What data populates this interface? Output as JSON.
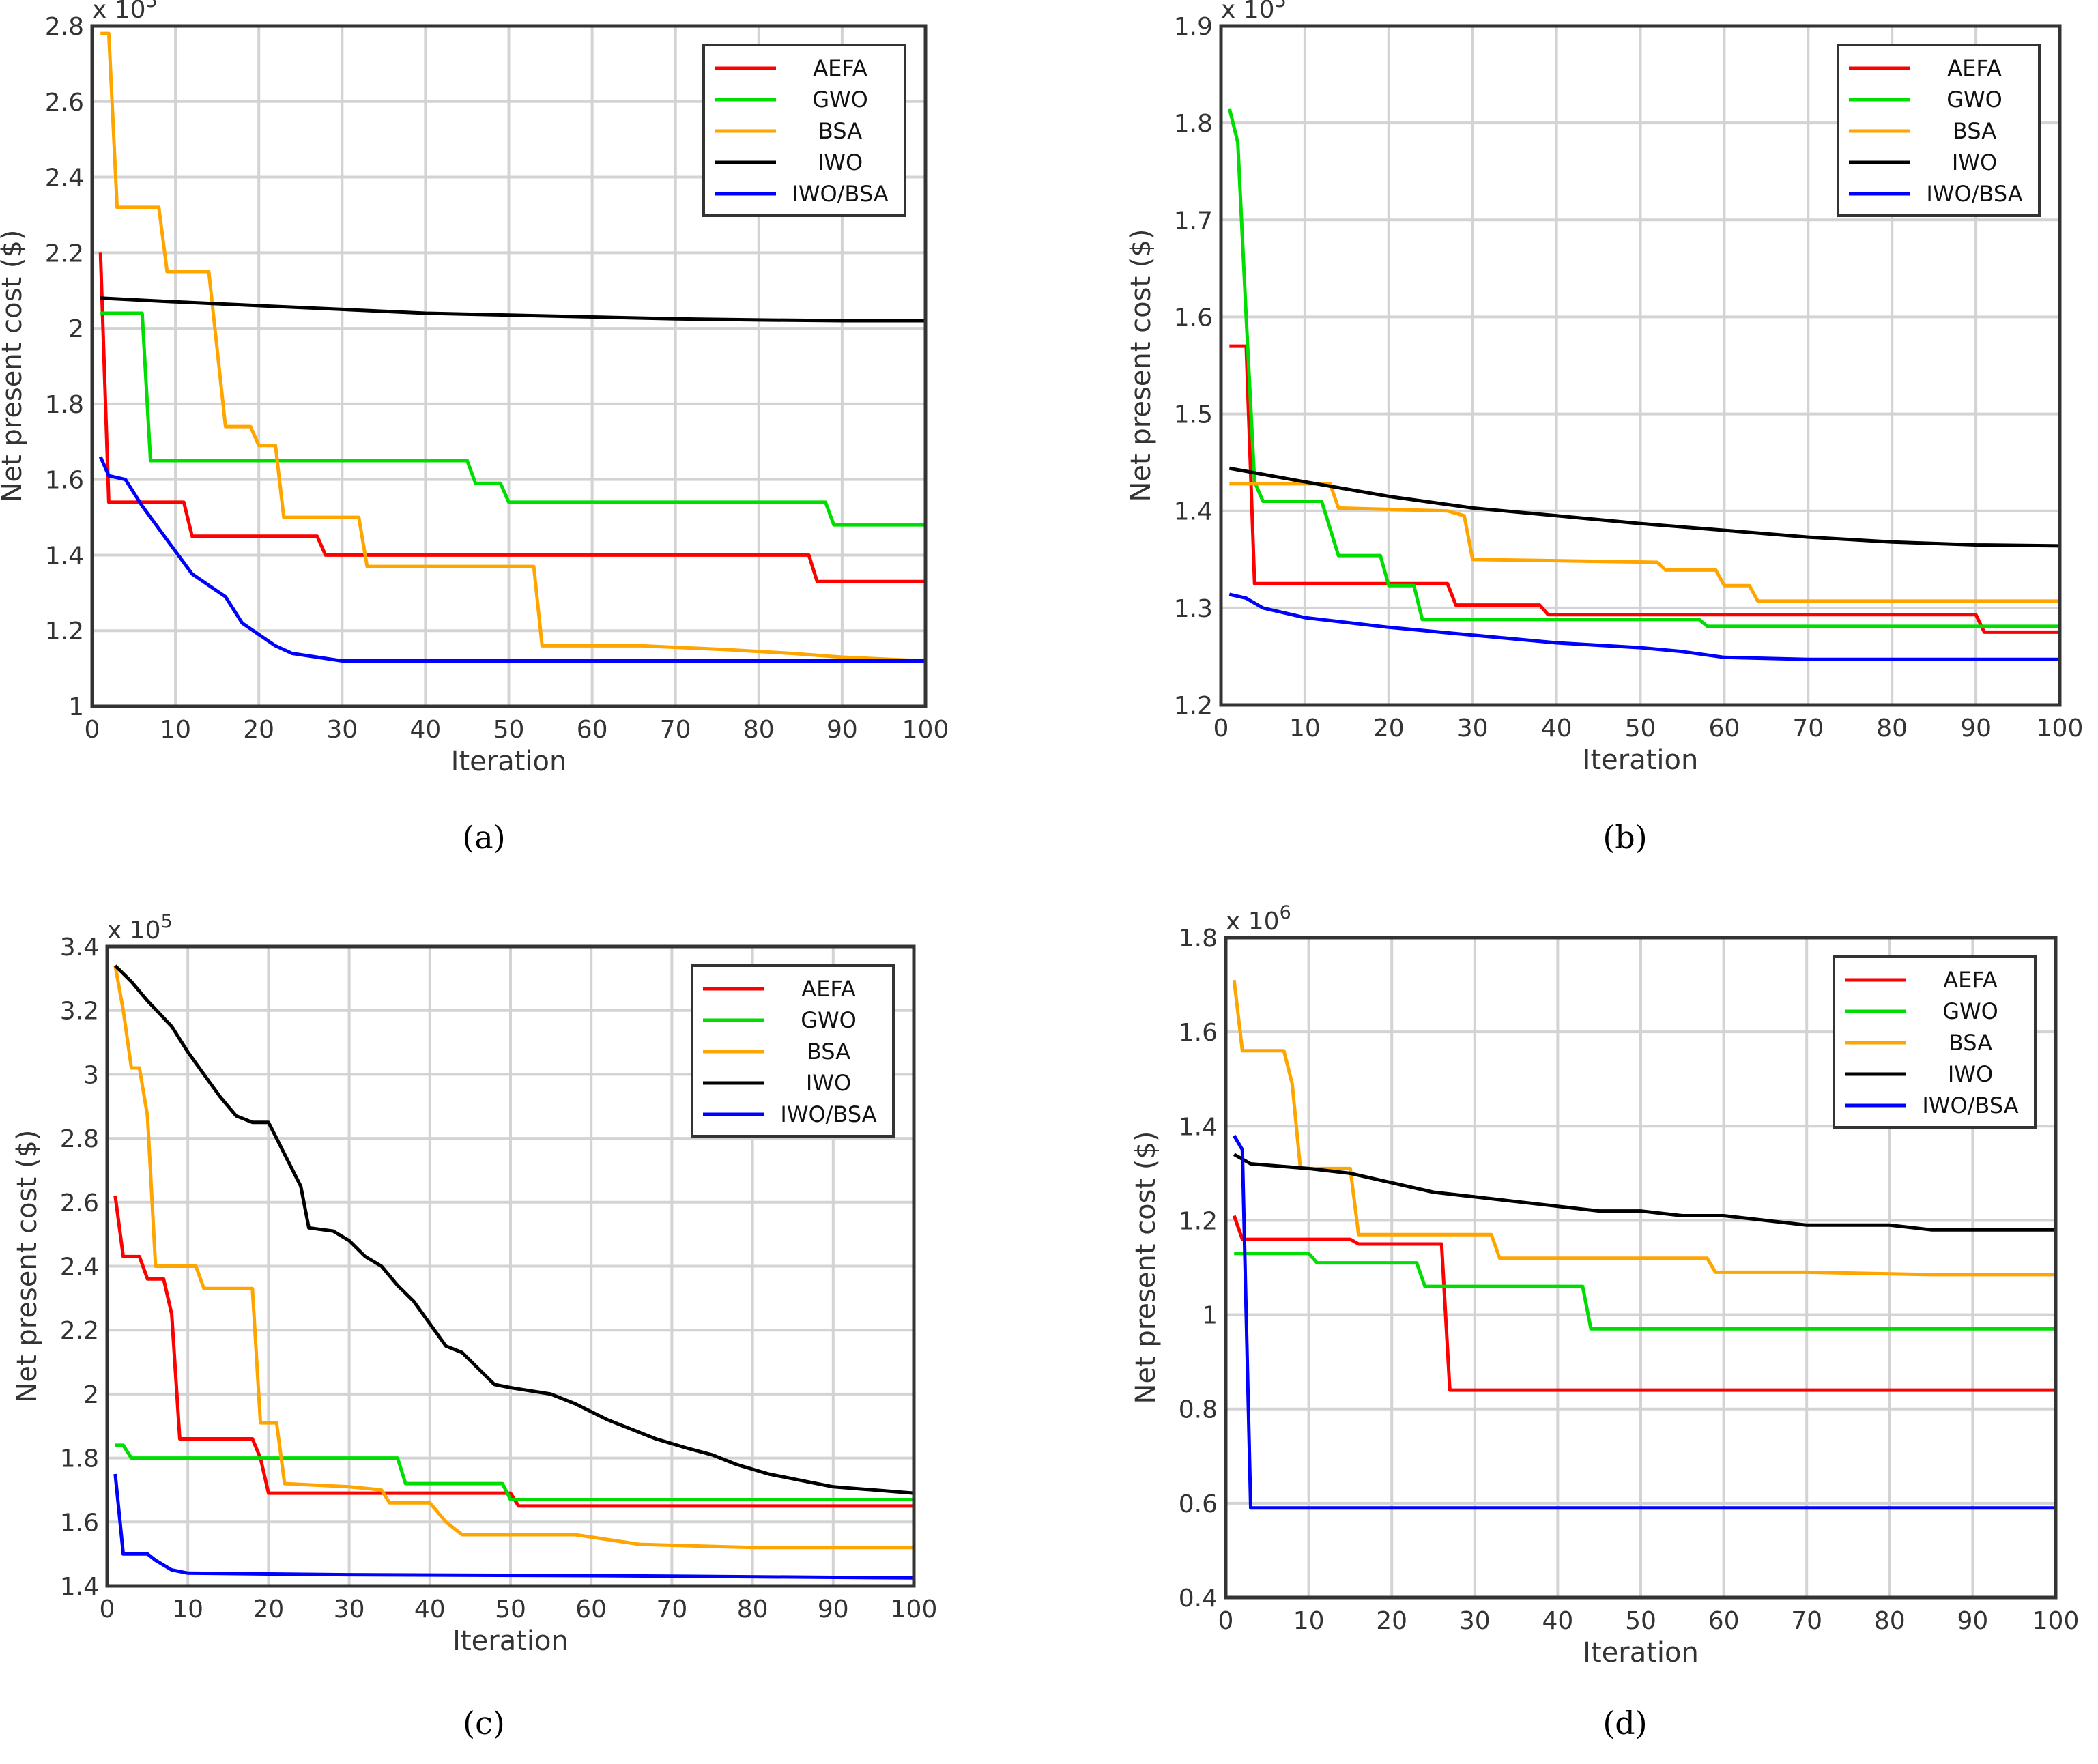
{
  "figure": {
    "captions": [
      "(a)",
      "(b)",
      "(c)",
      "(d)"
    ]
  },
  "series_colors": {
    "AEFA": "#ff0000",
    "GWO": "#00dd00",
    "BSA": "#ffa500",
    "IWO": "#000000",
    "IWO/BSA": "#0000ff"
  },
  "chart_data": [
    {
      "type": "line",
      "panel": "a",
      "xlabel": "Iteration",
      "ylabel": "Net present cost ($)",
      "multiplier": "x 10",
      "exponent": "5",
      "xlim": [
        0,
        100
      ],
      "ylim": [
        1,
        2.8
      ],
      "xticks": [
        0,
        10,
        20,
        30,
        40,
        50,
        60,
        70,
        80,
        90,
        100
      ],
      "yticks": [
        1,
        1.2,
        1.4,
        1.6,
        1.8,
        2,
        2.2,
        2.4,
        2.6,
        2.8
      ],
      "ytick_labels": [
        "1",
        "1.2",
        "1.4",
        "1.6",
        "1.8",
        "2",
        "2.2",
        "2.4",
        "2.6",
        "2.8"
      ],
      "legend": [
        "AEFA",
        "GWO",
        "BSA",
        "IWO",
        "IWO/BSA"
      ],
      "legend_position": "top-right",
      "series": [
        {
          "name": "AEFA",
          "x": [
            1,
            2,
            11,
            12,
            27,
            28,
            86,
            87,
            100
          ],
          "y": [
            2.2,
            1.54,
            1.54,
            1.45,
            1.45,
            1.4,
            1.4,
            1.33,
            1.33
          ]
        },
        {
          "name": "GWO",
          "x": [
            1,
            6,
            7,
            45,
            46,
            49,
            50,
            88,
            89,
            100
          ],
          "y": [
            2.04,
            2.04,
            1.65,
            1.65,
            1.59,
            1.59,
            1.54,
            1.54,
            1.48,
            1.48
          ]
        },
        {
          "name": "BSA",
          "x": [
            1,
            2,
            3,
            8,
            9,
            14,
            16,
            19,
            20,
            22,
            23,
            32,
            33,
            53,
            54,
            66,
            76,
            84,
            90,
            100
          ],
          "y": [
            2.78,
            2.78,
            2.32,
            2.32,
            2.15,
            2.15,
            1.74,
            1.74,
            1.69,
            1.69,
            1.5,
            1.5,
            1.37,
            1.37,
            1.16,
            1.16,
            1.15,
            1.14,
            1.13,
            1.12
          ]
        },
        {
          "name": "IWO",
          "x": [
            1,
            10,
            20,
            30,
            40,
            50,
            60,
            70,
            80,
            90,
            100
          ],
          "y": [
            2.08,
            2.07,
            2.06,
            2.05,
            2.04,
            2.035,
            2.03,
            2.025,
            2.022,
            2.02,
            2.02
          ]
        },
        {
          "name": "IWO/BSA",
          "x": [
            1,
            2,
            4,
            6,
            8,
            10,
            12,
            14,
            16,
            18,
            20,
            22,
            24,
            27,
            30,
            100
          ],
          "y": [
            1.66,
            1.61,
            1.6,
            1.53,
            1.47,
            1.41,
            1.35,
            1.32,
            1.29,
            1.22,
            1.19,
            1.16,
            1.14,
            1.13,
            1.12,
            1.12
          ]
        }
      ]
    },
    {
      "type": "line",
      "panel": "b",
      "xlabel": "Iteration",
      "ylabel": "Net present cost ($)",
      "multiplier": "x 10",
      "exponent": "5",
      "xlim": [
        0,
        100
      ],
      "ylim": [
        1.2,
        1.9
      ],
      "xticks": [
        0,
        10,
        20,
        30,
        40,
        50,
        60,
        70,
        80,
        90,
        100
      ],
      "yticks": [
        1.2,
        1.3,
        1.4,
        1.5,
        1.6,
        1.7,
        1.8,
        1.9
      ],
      "ytick_labels": [
        "1.2",
        "1.3",
        "1.4",
        "1.5",
        "1.6",
        "1.7",
        "1.8",
        "1.9"
      ],
      "legend": [
        "AEFA",
        "GWO",
        "BSA",
        "IWO",
        "IWO/BSA"
      ],
      "legend_position": "top-right",
      "series": [
        {
          "name": "AEFA",
          "x": [
            1,
            3,
            4,
            27,
            28,
            38,
            39,
            90,
            91,
            100
          ],
          "y": [
            1.57,
            1.57,
            1.325,
            1.325,
            1.303,
            1.303,
            1.293,
            1.293,
            1.275,
            1.275
          ]
        },
        {
          "name": "GWO",
          "x": [
            1,
            2,
            3,
            4,
            5,
            12,
            14,
            19,
            20,
            23,
            24,
            57,
            58,
            100
          ],
          "y": [
            1.815,
            1.78,
            1.6,
            1.43,
            1.41,
            1.41,
            1.354,
            1.354,
            1.323,
            1.323,
            1.288,
            1.288,
            1.281,
            1.281
          ]
        },
        {
          "name": "BSA",
          "x": [
            1,
            13,
            14,
            27,
            29,
            30,
            38,
            52,
            53,
            59,
            60,
            63,
            64,
            100
          ],
          "y": [
            1.428,
            1.428,
            1.403,
            1.4,
            1.395,
            1.35,
            1.349,
            1.347,
            1.339,
            1.339,
            1.323,
            1.323,
            1.307,
            1.307
          ]
        },
        {
          "name": "IWO",
          "x": [
            1,
            10,
            20,
            30,
            40,
            50,
            60,
            70,
            80,
            90,
            100
          ],
          "y": [
            1.444,
            1.43,
            1.415,
            1.403,
            1.395,
            1.387,
            1.38,
            1.373,
            1.368,
            1.365,
            1.364
          ]
        },
        {
          "name": "IWO/BSA",
          "x": [
            1,
            3,
            5,
            10,
            20,
            30,
            40,
            50,
            55,
            60,
            70,
            80,
            100
          ],
          "y": [
            1.314,
            1.31,
            1.3,
            1.29,
            1.28,
            1.272,
            1.264,
            1.259,
            1.255,
            1.249,
            1.247,
            1.247,
            1.247
          ]
        }
      ]
    },
    {
      "type": "line",
      "panel": "c",
      "xlabel": "Iteration",
      "ylabel": "Net present cost ($)",
      "multiplier": "x 10",
      "exponent": "5",
      "xlim": [
        0,
        100
      ],
      "ylim": [
        1.4,
        3.4
      ],
      "xticks": [
        0,
        10,
        20,
        30,
        40,
        50,
        60,
        70,
        80,
        90,
        100
      ],
      "yticks": [
        1.4,
        1.6,
        1.8,
        2,
        2.2,
        2.4,
        2.6,
        2.8,
        3,
        3.2,
        3.4
      ],
      "ytick_labels": [
        "1.4",
        "1.6",
        "1.8",
        "2",
        "2.2",
        "2.4",
        "2.6",
        "2.8",
        "3",
        "3.2",
        "3.4"
      ],
      "legend": [
        "AEFA",
        "GWO",
        "BSA",
        "IWO",
        "IWO/BSA"
      ],
      "legend_position": "top-right",
      "series": [
        {
          "name": "AEFA",
          "x": [
            1,
            2,
            4,
            5,
            7,
            8,
            9,
            18,
            19,
            20,
            50,
            51,
            100
          ],
          "y": [
            2.62,
            2.43,
            2.43,
            2.36,
            2.36,
            2.25,
            1.86,
            1.86,
            1.8,
            1.69,
            1.69,
            1.65,
            1.65
          ]
        },
        {
          "name": "GWO",
          "x": [
            1,
            2,
            3,
            36,
            37,
            49,
            50,
            100
          ],
          "y": [
            1.84,
            1.84,
            1.8,
            1.8,
            1.72,
            1.72,
            1.67,
            1.67
          ]
        },
        {
          "name": "BSA",
          "x": [
            1,
            2,
            3,
            4,
            5,
            6,
            11,
            12,
            18,
            19,
            21,
            22,
            30,
            34,
            35,
            40,
            42,
            44,
            58,
            66,
            80,
            100
          ],
          "y": [
            3.34,
            3.2,
            3.02,
            3.02,
            2.87,
            2.4,
            2.4,
            2.33,
            2.33,
            1.91,
            1.91,
            1.72,
            1.71,
            1.7,
            1.66,
            1.66,
            1.6,
            1.56,
            1.56,
            1.53,
            1.52,
            1.52
          ]
        },
        {
          "name": "IWO",
          "x": [
            1,
            3,
            5,
            8,
            10,
            12,
            14,
            16,
            18,
            20,
            22,
            24,
            25,
            28,
            30,
            32,
            34,
            36,
            38,
            40,
            42,
            44,
            46,
            48,
            50,
            55,
            58,
            62,
            65,
            68,
            72,
            75,
            78,
            82,
            86,
            90,
            95,
            100
          ],
          "y": [
            3.34,
            3.29,
            3.23,
            3.15,
            3.07,
            3.0,
            2.93,
            2.87,
            2.85,
            2.85,
            2.75,
            2.65,
            2.52,
            2.51,
            2.48,
            2.43,
            2.4,
            2.34,
            2.29,
            2.22,
            2.15,
            2.13,
            2.08,
            2.03,
            2.02,
            2.0,
            1.97,
            1.92,
            1.89,
            1.86,
            1.83,
            1.81,
            1.78,
            1.75,
            1.73,
            1.71,
            1.7,
            1.69
          ]
        },
        {
          "name": "IWO/BSA",
          "x": [
            1,
            2,
            5,
            6,
            8,
            9,
            10,
            30,
            60,
            100
          ],
          "y": [
            1.75,
            1.5,
            1.5,
            1.48,
            1.45,
            1.445,
            1.44,
            1.435,
            1.432,
            1.425
          ]
        }
      ]
    },
    {
      "type": "line",
      "panel": "d",
      "xlabel": "Iteration",
      "ylabel": "Net present cost ($)",
      "multiplier": "x 10",
      "exponent": "6",
      "xlim": [
        0,
        100
      ],
      "ylim": [
        0.4,
        1.8
      ],
      "xticks": [
        0,
        10,
        20,
        30,
        40,
        50,
        60,
        70,
        80,
        90,
        100
      ],
      "yticks": [
        0.4,
        0.6,
        0.8,
        1,
        1.2,
        1.4,
        1.6,
        1.8
      ],
      "ytick_labels": [
        "0.4",
        "0.6",
        "0.8",
        "1",
        "1.2",
        "1.4",
        "1.6",
        "1.8"
      ],
      "legend": [
        "AEFA",
        "GWO",
        "BSA",
        "IWO",
        "IWO/BSA"
      ],
      "legend_position": "top-right",
      "series": [
        {
          "name": "AEFA",
          "x": [
            1,
            2,
            15,
            16,
            26,
            27,
            100
          ],
          "y": [
            1.21,
            1.16,
            1.16,
            1.15,
            1.15,
            0.84,
            0.84
          ]
        },
        {
          "name": "GWO",
          "x": [
            1,
            10,
            11,
            23,
            24,
            43,
            44,
            100
          ],
          "y": [
            1.13,
            1.13,
            1.11,
            1.11,
            1.06,
            1.06,
            0.97,
            0.97
          ]
        },
        {
          "name": "BSA",
          "x": [
            1,
            2,
            7,
            8,
            9,
            10,
            15,
            16,
            32,
            33,
            58,
            59,
            70,
            85,
            100
          ],
          "y": [
            1.71,
            1.56,
            1.56,
            1.49,
            1.31,
            1.31,
            1.31,
            1.17,
            1.17,
            1.12,
            1.12,
            1.09,
            1.09,
            1.085,
            1.085
          ]
        },
        {
          "name": "IWO",
          "x": [
            1,
            3,
            10,
            15,
            20,
            25,
            30,
            35,
            40,
            45,
            50,
            55,
            60,
            65,
            70,
            75,
            80,
            85,
            90,
            95,
            100
          ],
          "y": [
            1.34,
            1.32,
            1.31,
            1.3,
            1.28,
            1.26,
            1.25,
            1.24,
            1.23,
            1.22,
            1.22,
            1.21,
            1.21,
            1.2,
            1.19,
            1.19,
            1.19,
            1.18,
            1.18,
            1.18,
            1.18
          ]
        },
        {
          "name": "IWO/BSA",
          "x": [
            1,
            2,
            3,
            100
          ],
          "y": [
            1.38,
            1.35,
            0.59,
            0.59
          ]
        }
      ]
    }
  ]
}
